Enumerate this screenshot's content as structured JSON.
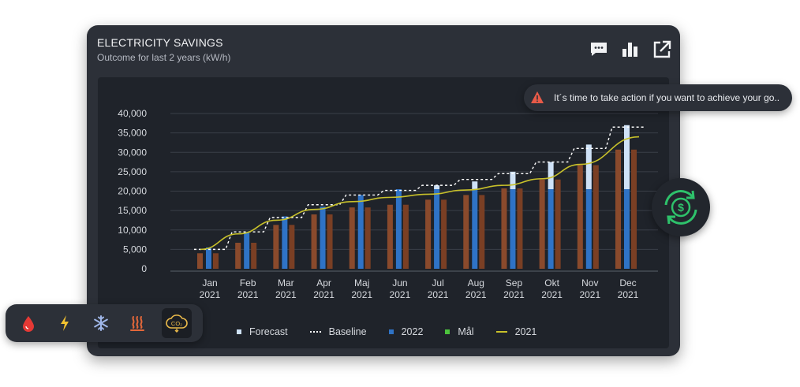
{
  "header": {
    "title": "ELECTRICITY SAVINGS",
    "subtitle": "Outcome for last 2 years (kW/h)",
    "icons": [
      "comment-icon",
      "bar-chart-icon",
      "external-link-icon"
    ]
  },
  "alert": {
    "icon": "warning-icon",
    "text": "It´s time to take action if you want to achieve your go.."
  },
  "side_badge": {
    "icon": "money-cycle-icon"
  },
  "toolbar": {
    "items": [
      {
        "name": "water-icon",
        "color": "#e53935"
      },
      {
        "name": "electricity-icon",
        "color": "#f2c230"
      },
      {
        "name": "cooling-icon",
        "color": "#9fb6e8"
      },
      {
        "name": "heating-icon",
        "color": "#e5683a"
      },
      {
        "name": "co2-icon",
        "color": "#e8b84a",
        "active": true
      }
    ]
  },
  "colors": {
    "card_bg": "#2c3038",
    "panel_bg": "#1f232a",
    "bar_2022": "#2f73c6",
    "bar_2021": "#8a4a2c",
    "forecast": "#cfe2f7",
    "line_2021": "#c8c12a",
    "baseline": "#ffffff",
    "mal": "#4cc33d",
    "alert_warning": "#e85a48",
    "money_green": "#2ec26b"
  },
  "chart_data": {
    "type": "bar",
    "categories": [
      "Jan\n2021",
      "Feb\n2021",
      "Mar\n2021",
      "Apr\n2021",
      "Maj\n2021",
      "Jun\n2021",
      "Jul\n2021",
      "Aug\n2021",
      "Sep\n2021",
      "Okt\n2021",
      "Nov\n2021",
      "Dec\n2021"
    ],
    "category_labels": [
      {
        "month": "Jan",
        "year": "2021"
      },
      {
        "month": "Feb",
        "year": "2021"
      },
      {
        "month": "Mar",
        "year": "2021"
      },
      {
        "month": "Apr",
        "year": "2021"
      },
      {
        "month": "Maj",
        "year": "2021"
      },
      {
        "month": "Jun",
        "year": "2021"
      },
      {
        "month": "Jul",
        "year": "2021"
      },
      {
        "month": "Aug",
        "year": "2021"
      },
      {
        "month": "Sep",
        "year": "2021"
      },
      {
        "month": "Okt",
        "year": "2021"
      },
      {
        "month": "Nov",
        "year": "2021"
      },
      {
        "month": "Dec",
        "year": "2021"
      }
    ],
    "series": [
      {
        "name": "2022",
        "type": "bar",
        "values": [
          5500,
          9500,
          13500,
          16000,
          19000,
          20500,
          20500,
          20500,
          20500,
          20500,
          20500,
          20500
        ]
      },
      {
        "name": "Forecast",
        "type": "bar-stacked",
        "values": [
          0,
          0,
          0,
          0,
          0,
          0,
          1000,
          2000,
          4500,
          7000,
          11500,
          16500
        ]
      },
      {
        "name": "2021 bars",
        "type": "bar",
        "values": [
          4000,
          6700,
          11300,
          14000,
          15800,
          16500,
          17800,
          19000,
          20700,
          23000,
          26700,
          30700
        ]
      },
      {
        "name": "Baseline",
        "type": "step-dashed",
        "values": [
          5000,
          9500,
          13200,
          16500,
          19000,
          20200,
          21500,
          23000,
          24500,
          27500,
          31000,
          36500
        ]
      },
      {
        "name": "2021",
        "type": "line",
        "values": [
          5000,
          9000,
          12500,
          15300,
          17300,
          18400,
          19200,
          20300,
          21500,
          23200,
          26900,
          34000
        ]
      }
    ],
    "legend": [
      "Forecast",
      "Baseline",
      "2022",
      "Mål",
      "2021"
    ],
    "yticks": [
      "40,000",
      "35,000",
      "30,000",
      "25,000",
      "20,000",
      "15,000",
      "10,000",
      "5,000",
      "0"
    ],
    "ylim": [
      0,
      40000
    ],
    "grid": true,
    "legend_position": "bottom"
  }
}
